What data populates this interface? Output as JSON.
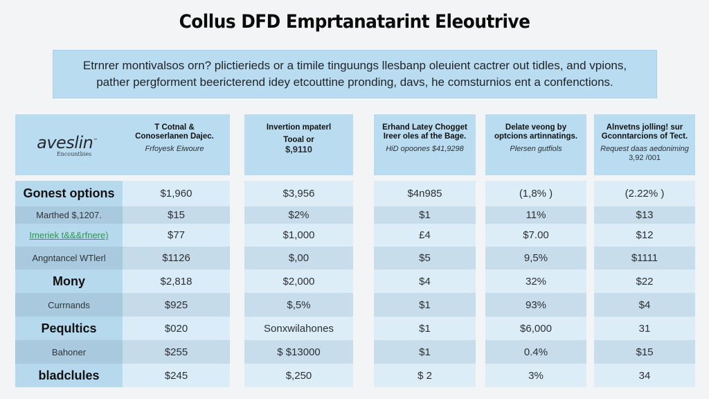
{
  "title": "Collus DFD Emprtanatarint Eleoutrive",
  "banner": {
    "line1": "Etrnrer montivalsos orn? plictierieds or a timile tinguungs llesbanp oleuient cactrer out tidles, and vpions,",
    "line2": "pather pergforment beericterend idey etcouttine pronding, davs, he comsturnios ent a confenctions."
  },
  "logo": {
    "name": "aveslin",
    "trademark": "™",
    "tagline": "Encountbies"
  },
  "columns": [
    {
      "header": {
        "line1": "T Cotnal &",
        "line2": "Conoserlanen Dajec.",
        "sub": "Frfoyesk Eiwoure"
      },
      "values": [
        "$1,960",
        "$15",
        "$77",
        "$1126",
        "$2,818",
        "$925",
        "$020",
        "$255",
        "$245"
      ]
    },
    {
      "header": {
        "line1": "Invertion mpaterl",
        "line2": "Tooal or",
        "sub": "$,9110"
      },
      "values": [
        "$3,956",
        "$2%",
        "$1,000",
        "$,00",
        "$2,000",
        "$,5%",
        "Sonxwilahones",
        "$ $13000",
        "$,250"
      ]
    },
    {
      "header": {
        "line1": "Erhand Latey Chogget",
        "line2": "Ireer oles af the Bage.",
        "sub": "HiD opoones $41,9298"
      },
      "values": [
        "$4n985",
        "$1",
        "£4",
        "$5",
        "$4",
        "$1",
        "$1",
        "$1",
        "$ 2"
      ]
    },
    {
      "header": {
        "line1": "Delate veong by",
        "line2": "optcions artinnatings.",
        "sub": "Plersen gutfiols"
      },
      "values": [
        "(1,8% )",
        "11%",
        "$7.00",
        "9,5%",
        "32%",
        "93%",
        "$6,000",
        "0.4%",
        "3%"
      ]
    },
    {
      "header": {
        "line1": "Alnvetns jolling! sur",
        "line2": "Gconntarcions of Tect.",
        "sub": "Request daas aedoniming",
        "sub2": "3,92 /001"
      },
      "values": [
        "(2.22% )",
        "$13",
        "$12",
        "$1111",
        "$22",
        "$4",
        "31",
        "$15",
        "34"
      ]
    }
  ],
  "row_labels": [
    {
      "text": "Gonest options",
      "style": "bold"
    },
    {
      "text": "Marthed $,1207.",
      "style": "normal"
    },
    {
      "text": "Imeriek t&&&rfnere)",
      "style": "link"
    },
    {
      "text": "Angntancel WTlerl",
      "style": "normal"
    },
    {
      "text": "Mony",
      "style": "bold"
    },
    {
      "text": "Currnands",
      "style": "normal"
    },
    {
      "text": "Pequltics",
      "style": "bold"
    },
    {
      "text": "Bahoner",
      "style": "normal"
    },
    {
      "text": "bladclules",
      "style": "bold"
    }
  ]
}
